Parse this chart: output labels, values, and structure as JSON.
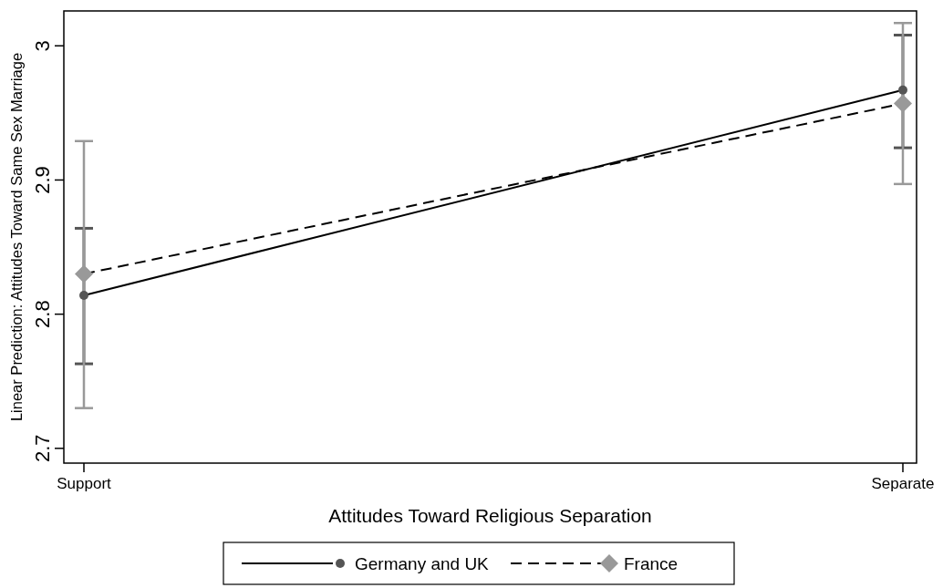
{
  "chart_data": {
    "type": "line",
    "xlabel": "Attitudes Toward Religious Separation",
    "ylabel": "Linear Prediction: Attitudes Toward Same Sex Marriage",
    "categories": [
      "Support",
      "Separate"
    ],
    "ylim": [
      2.689,
      3.026
    ],
    "yticks": [
      2.7,
      2.8,
      2.9,
      3
    ],
    "grid": false,
    "legend": "bottom",
    "series": [
      {
        "name": "Germany and UK",
        "color": "#555555",
        "marker": "circle",
        "line_style": "solid",
        "values": [
          2.814,
          2.967
        ],
        "errors": [
          [
            2.763,
            2.864
          ],
          [
            2.924,
            3.008
          ]
        ]
      },
      {
        "name": "France",
        "color": "#999999",
        "marker": "diamond",
        "line_style": "dashed",
        "values": [
          2.83,
          2.957
        ],
        "errors": [
          [
            2.73,
            2.929
          ],
          [
            2.897,
            3.017
          ]
        ]
      }
    ]
  }
}
